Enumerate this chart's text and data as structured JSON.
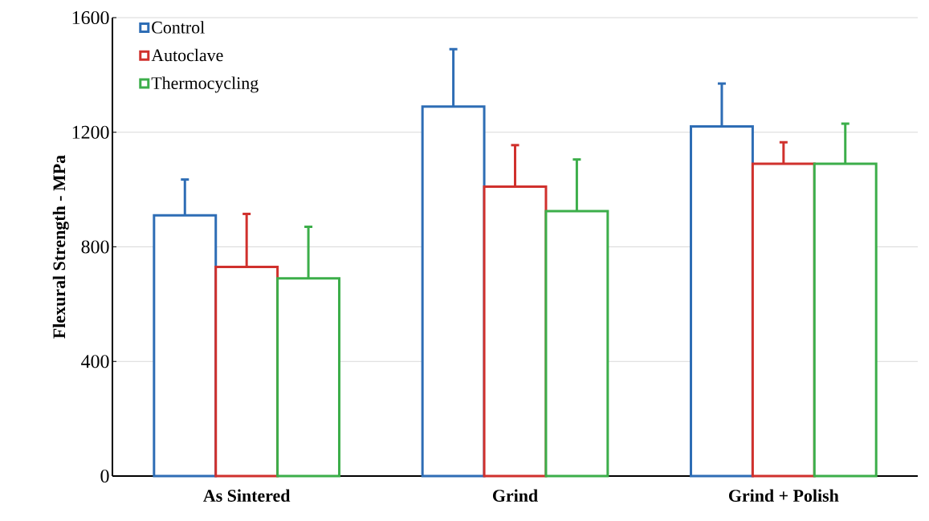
{
  "chart_data": {
    "type": "bar",
    "ylabel": "Flexural Strength - MPa",
    "categories": [
      "As Sintered",
      "Grind",
      "Grind + Polish"
    ],
    "series": [
      {
        "name": "Control",
        "color": "#2e6db5",
        "values": [
          910,
          1290,
          1220
        ],
        "errors": [
          [
            910,
            1035
          ],
          [
            1290,
            1490
          ],
          [
            1220,
            1370
          ]
        ]
      },
      {
        "name": "Autoclave",
        "color": "#d0312d",
        "values": [
          730,
          1010,
          1090
        ],
        "errors": [
          [
            730,
            915
          ],
          [
            1010,
            1155
          ],
          [
            1090,
            1165
          ]
        ]
      },
      {
        "name": "Thermocycling",
        "color": "#3cae4a",
        "values": [
          690,
          925,
          1090
        ],
        "errors": [
          [
            690,
            870
          ],
          [
            925,
            1105
          ],
          [
            1090,
            1230
          ]
        ]
      }
    ],
    "ylim": [
      0,
      1600
    ],
    "yticks": [
      0,
      400,
      800,
      1200,
      1600
    ],
    "grid": "y",
    "legend": "top left"
  }
}
